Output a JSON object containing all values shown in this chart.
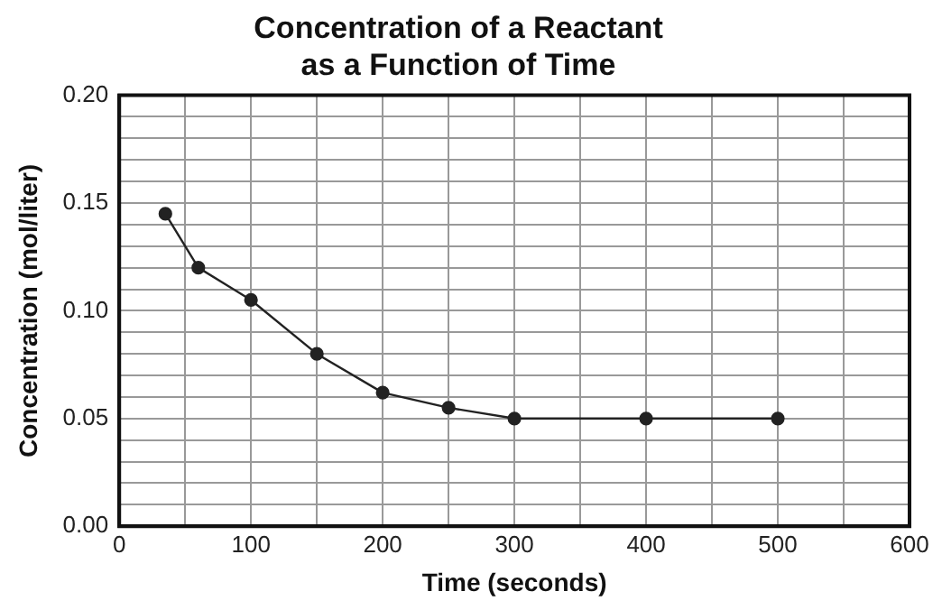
{
  "chart_data": {
    "type": "line",
    "title": "Concentration of a Reactant\nas a Function of Time",
    "xlabel": "Time (seconds)",
    "ylabel": "Concentration (mol/liter)",
    "x": [
      35,
      60,
      100,
      150,
      200,
      250,
      300,
      400,
      500
    ],
    "series": [
      {
        "color": "#222222",
        "values": [
          0.145,
          0.12,
          0.105,
          0.08,
          0.062,
          0.055,
          0.05,
          0.05,
          0.05
        ]
      }
    ],
    "xlim": [
      0,
      600
    ],
    "xticks": [
      0,
      {
        "value": 50,
        "label": null
      },
      100,
      {
        "value": 150,
        "label": null
      },
      200,
      {
        "value": 250,
        "label": null
      },
      300,
      {
        "value": 350,
        "label": null
      },
      400,
      {
        "value": 450,
        "label": null
      },
      500,
      {
        "value": 550,
        "label": null
      },
      600
    ],
    "ylim": [
      0,
      0.2
    ],
    "yticks": [
      {
        "value": 0,
        "label": "0.00"
      },
      {
        "value": 0.01,
        "label": null
      },
      {
        "value": 0.02,
        "label": null
      },
      {
        "value": 0.03,
        "label": null
      },
      {
        "value": 0.04,
        "label": null
      },
      {
        "value": 0.05,
        "label": "0.05"
      },
      {
        "value": 0.06,
        "label": null
      },
      {
        "value": 0.07,
        "label": null
      },
      {
        "value": 0.08,
        "label": null
      },
      {
        "value": 0.09,
        "label": null
      },
      {
        "value": 0.1,
        "label": "0.10"
      },
      {
        "value": 0.11,
        "label": null
      },
      {
        "value": 0.12,
        "label": null
      },
      {
        "value": 0.13,
        "label": null
      },
      {
        "value": 0.14,
        "label": null
      },
      {
        "value": 0.15,
        "label": "0.15"
      },
      {
        "value": 0.16,
        "label": null
      },
      {
        "value": 0.17,
        "label": null
      },
      {
        "value": 0.18,
        "label": null
      },
      {
        "value": 0.19,
        "label": null
      },
      {
        "value": 0.2,
        "label": "0.20"
      }
    ],
    "grid": true,
    "marker": "circle",
    "line_style": "solid",
    "legend": false
  }
}
